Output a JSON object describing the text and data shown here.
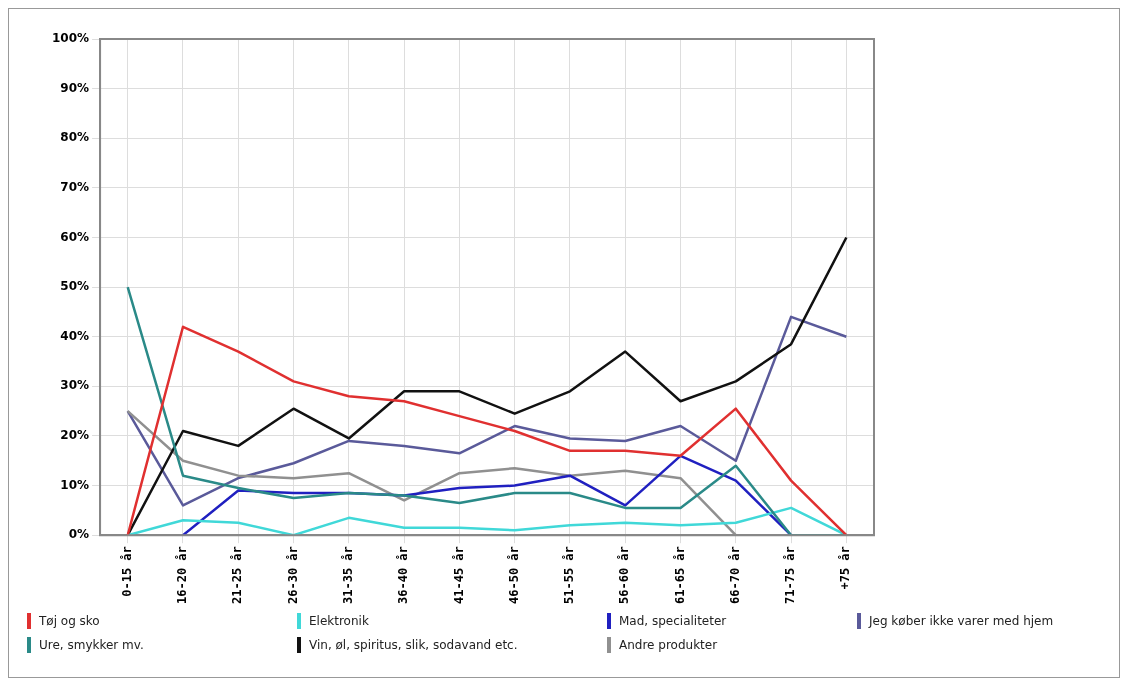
{
  "chart_data": {
    "type": "line",
    "categories": [
      "0-15 år",
      "16-20 år",
      "21-25 år",
      "26-30 år",
      "31-35 år",
      "36-40 år",
      "41-45 år",
      "46-50 år",
      "51-55 år",
      "56-60 år",
      "61-65 år",
      "66-70 år",
      "71-75 år",
      "+75 år"
    ],
    "ylim": [
      0,
      100
    ],
    "yticks": [
      {
        "value": 0,
        "label": "0%"
      },
      {
        "value": 10,
        "label": "10%"
      },
      {
        "value": 20,
        "label": "20%"
      },
      {
        "value": 30,
        "label": "30%"
      },
      {
        "value": 40,
        "label": "40%"
      },
      {
        "value": 50,
        "label": "50%"
      },
      {
        "value": 60,
        "label": "60%"
      },
      {
        "value": 70,
        "label": "70%"
      },
      {
        "value": 80,
        "label": "80%"
      },
      {
        "value": 90,
        "label": "90%"
      },
      {
        "value": 100,
        "label": "100%"
      }
    ],
    "grid": true,
    "legend": "bottom",
    "marker": "none",
    "line_style": "solid",
    "series": [
      {
        "name": "Tøj og sko",
        "color": "#e03030",
        "values": [
          0,
          42,
          37,
          31,
          28,
          27,
          24,
          21,
          17,
          17,
          16,
          25.5,
          11,
          0
        ]
      },
      {
        "name": "Ure, smykker mv.",
        "color": "#2a8a88",
        "values": [
          50,
          12,
          9.5,
          7.5,
          8.5,
          8,
          6.5,
          8.5,
          8.5,
          5.5,
          5.5,
          14,
          0,
          0
        ]
      },
      {
        "name": "Elektronik",
        "color": "#40d8d8",
        "values": [
          0,
          3,
          2.5,
          0,
          3.5,
          1.5,
          1.5,
          1,
          2,
          2.5,
          2,
          2.5,
          5.5,
          0
        ]
      },
      {
        "name": "Vin, øl, spiritus, slik, sodavand etc.",
        "color": "#111111",
        "values": [
          0,
          21,
          18,
          25.5,
          19.5,
          29,
          29,
          24.5,
          29,
          37,
          27,
          31,
          38.5,
          60
        ]
      },
      {
        "name": "Mad, specialiteter",
        "color": "#2020c0",
        "values": [
          null,
          0,
          9,
          8.5,
          8.5,
          8,
          9.5,
          10,
          12,
          6,
          16,
          11,
          0,
          null
        ]
      },
      {
        "name": "Andre produkter",
        "color": "#909090",
        "values": [
          25,
          15,
          12,
          11.5,
          12.5,
          7,
          12.5,
          13.5,
          12,
          13,
          11.5,
          0,
          null,
          null
        ]
      },
      {
        "name": "Jeg køber ikke varer med hjem",
        "color": "#5a5a9a",
        "values": [
          25,
          6,
          11.5,
          14.5,
          19,
          18,
          16.5,
          22,
          19.5,
          19,
          22,
          15,
          44,
          40
        ]
      }
    ]
  }
}
